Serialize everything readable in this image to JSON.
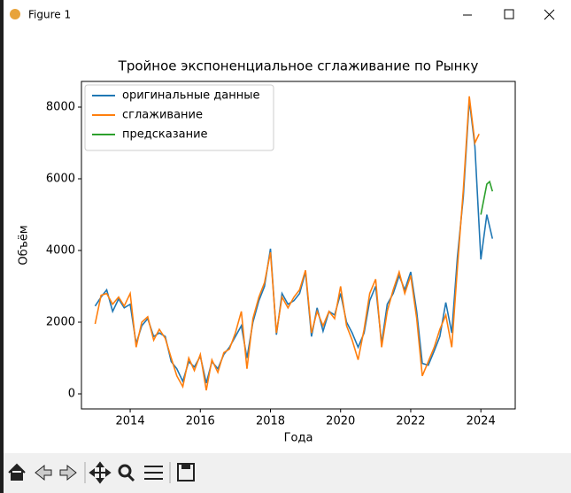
{
  "window_title": "Figure 1",
  "chart_data": {
    "type": "line",
    "title": "Тройное экспоненциальное сглаживание по Рынку",
    "xlabel": "Года",
    "ylabel": "Объём",
    "xlim": [
      2012.61,
      2024.98
    ],
    "ylim": [
      -420,
      8716
    ],
    "xticks": [
      2014,
      2016,
      2018,
      2020,
      2022,
      2024
    ],
    "yticks": [
      0,
      2000,
      4000,
      6000,
      8000
    ],
    "legend": "upper left",
    "series": [
      {
        "name": "оригинальные данные",
        "color": "#1f77b4",
        "x": [
          2013.0,
          2013.17,
          2013.33,
          2013.5,
          2013.67,
          2013.83,
          2014.0,
          2014.17,
          2014.33,
          2014.5,
          2014.67,
          2014.83,
          2015.0,
          2015.17,
          2015.33,
          2015.5,
          2015.67,
          2015.83,
          2016.0,
          2016.17,
          2016.33,
          2016.5,
          2016.67,
          2016.83,
          2017.0,
          2017.17,
          2017.33,
          2017.5,
          2017.67,
          2017.83,
          2018.0,
          2018.17,
          2018.33,
          2018.5,
          2018.67,
          2018.83,
          2019.0,
          2019.17,
          2019.33,
          2019.5,
          2019.67,
          2019.83,
          2020.0,
          2020.17,
          2020.33,
          2020.5,
          2020.67,
          2020.83,
          2021.0,
          2021.17,
          2021.33,
          2021.5,
          2021.67,
          2021.83,
          2022.0,
          2022.17,
          2022.33,
          2022.5,
          2022.67,
          2022.83,
          2023.0,
          2023.17,
          2023.33,
          2023.5,
          2023.67,
          2023.83,
          2024.0,
          2024.17,
          2024.33
        ],
        "values": [
          2450,
          2700,
          2900,
          2300,
          2650,
          2400,
          2500,
          1400,
          1900,
          2100,
          1600,
          1700,
          1600,
          900,
          700,
          350,
          900,
          750,
          1050,
          300,
          900,
          700,
          1100,
          1300,
          1600,
          1900,
          1000,
          2000,
          2600,
          3000,
          4050,
          1650,
          2800,
          2500,
          2600,
          2800,
          3400,
          1600,
          2400,
          1750,
          2300,
          2200,
          2800,
          2000,
          1700,
          1300,
          1700,
          2600,
          3000,
          1400,
          2500,
          2800,
          3300,
          2900,
          3400,
          2300,
          850,
          800,
          1200,
          1600,
          2550,
          1700,
          3800,
          5500,
          8200,
          6900,
          3750,
          5000,
          4330
        ]
      },
      {
        "name": "сглаживание",
        "color": "#ff7f0e",
        "x": [
          2013.0,
          2013.17,
          2013.33,
          2013.5,
          2013.67,
          2013.83,
          2014.0,
          2014.17,
          2014.33,
          2014.5,
          2014.67,
          2014.83,
          2015.0,
          2015.17,
          2015.33,
          2015.5,
          2015.67,
          2015.83,
          2016.0,
          2016.17,
          2016.33,
          2016.5,
          2016.67,
          2016.83,
          2017.0,
          2017.17,
          2017.33,
          2017.5,
          2017.67,
          2017.83,
          2018.0,
          2018.17,
          2018.33,
          2018.5,
          2018.67,
          2018.83,
          2019.0,
          2019.17,
          2019.33,
          2019.5,
          2019.67,
          2019.83,
          2020.0,
          2020.17,
          2020.33,
          2020.5,
          2020.67,
          2020.83,
          2021.0,
          2021.17,
          2021.33,
          2021.5,
          2021.67,
          2021.83,
          2022.0,
          2022.17,
          2022.33,
          2022.5,
          2022.67,
          2022.83,
          2023.0,
          2023.17,
          2023.33,
          2023.5,
          2023.67,
          2023.83,
          2023.95
        ],
        "values": [
          1950,
          2750,
          2800,
          2500,
          2700,
          2450,
          2800,
          1300,
          2000,
          2150,
          1500,
          1800,
          1550,
          1000,
          500,
          200,
          1000,
          650,
          1100,
          100,
          950,
          600,
          1150,
          1250,
          1700,
          2300,
          700,
          2100,
          2700,
          3100,
          3950,
          1700,
          2700,
          2400,
          2700,
          2900,
          3450,
          1700,
          2300,
          1900,
          2300,
          2100,
          3000,
          1900,
          1500,
          950,
          1800,
          2800,
          3200,
          1300,
          2300,
          2900,
          3400,
          2800,
          3300,
          2100,
          500,
          900,
          1300,
          1800,
          2200,
          1300,
          3500,
          5700,
          8300,
          7000,
          7250
        ]
      },
      {
        "name": "предсказание",
        "color": "#2ca02c",
        "x": [
          2024.0,
          2024.08,
          2024.17,
          2024.25,
          2024.33
        ],
        "values": [
          5000,
          5400,
          5850,
          5920,
          5650
        ]
      }
    ]
  }
}
